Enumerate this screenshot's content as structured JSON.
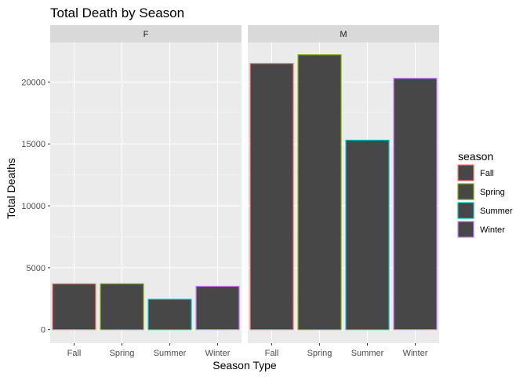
{
  "chart_data": {
    "type": "bar",
    "title": "Total Death by Season",
    "xlabel": "Season Type",
    "ylabel": "Total Deaths",
    "ylim": [
      -1100,
      23200
    ],
    "y_ticks": [
      0,
      5000,
      10000,
      15000,
      20000
    ],
    "y_tick_labels": [
      "0",
      "5000",
      "10000",
      "15000",
      "20000"
    ],
    "categories": [
      "Fall",
      "Spring",
      "Summer",
      "Winter"
    ],
    "grid": true,
    "legend": {
      "title": "season",
      "placement": "right",
      "entries": [
        "Fall",
        "Spring",
        "Summer",
        "Winter"
      ]
    },
    "fill_color": "#474747",
    "panel_background": "#ebebeb",
    "strip_background": "#d9d9d9",
    "outline_colors": {
      "Fall": "#f8766d",
      "Spring": "#7cae00",
      "Summer": "#00bfc4",
      "Winter": "#c77cff"
    },
    "facets": [
      {
        "label": "F",
        "values": [
          3700,
          3700,
          2450,
          3500
        ]
      },
      {
        "label": "M",
        "values": [
          21500,
          22200,
          15300,
          20300
        ]
      }
    ]
  }
}
